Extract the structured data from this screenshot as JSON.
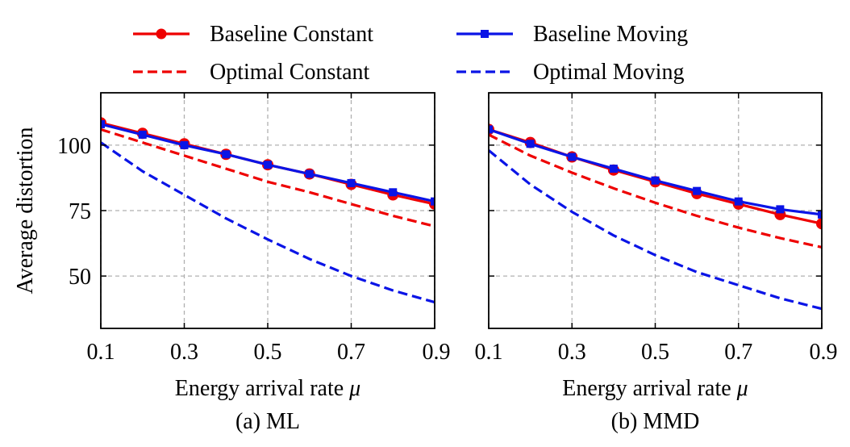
{
  "legend": {
    "entries": [
      {
        "label": "Baseline Constant",
        "color": "#ee0000",
        "style": "solid",
        "marker": "circle"
      },
      {
        "label": "Optimal Constant",
        "color": "#ee0000",
        "style": "dashed",
        "marker": "none"
      },
      {
        "label": "Baseline Moving",
        "color": "#0a14e6",
        "style": "solid",
        "marker": "square"
      },
      {
        "label": "Optimal Moving",
        "color": "#0a14e6",
        "style": "dashed",
        "marker": "none"
      }
    ]
  },
  "colors": {
    "red": "#ee0000",
    "blue": "#0a14e6",
    "grid": "#b0b0b0"
  },
  "chart_data": [
    {
      "type": "line",
      "title": "(a) ML",
      "xlabel": "Energy arrival rate",
      "xlabel_symbol": "μ",
      "ylabel": "Average distortion",
      "xlim": [
        0.1,
        0.9
      ],
      "ylim": [
        30,
        120
      ],
      "xticks": [
        "0.1",
        "0.3",
        "0.5",
        "0.7",
        "0.9"
      ],
      "yticks": [
        "50",
        "75",
        "100"
      ],
      "grid": true,
      "x": [
        0.1,
        0.2,
        0.3,
        0.4,
        0.5,
        0.6,
        0.7,
        0.8,
        0.9
      ],
      "series": [
        {
          "name": "Baseline Constant",
          "values": [
            108.5,
            104.5,
            100.5,
            96.5,
            92.5,
            89,
            85,
            81,
            77.5
          ]
        },
        {
          "name": "Optimal Constant",
          "values": [
            106,
            101,
            96,
            91,
            86,
            82,
            77.5,
            73,
            69
          ]
        },
        {
          "name": "Baseline Moving",
          "values": [
            108,
            104,
            100,
            96.5,
            92.5,
            89,
            85.5,
            82,
            78.5
          ]
        },
        {
          "name": "Optimal Moving",
          "values": [
            101,
            90,
            81,
            72,
            64,
            56.5,
            50,
            44.5,
            40
          ]
        }
      ]
    },
    {
      "type": "line",
      "title": "(b) MMD",
      "xlabel": "Energy arrival rate",
      "xlabel_symbol": "μ",
      "ylabel": "",
      "xlim": [
        0.1,
        0.9
      ],
      "ylim": [
        30,
        120
      ],
      "xticks": [
        "0.1",
        "0.3",
        "0.5",
        "0.7",
        "0.9"
      ],
      "yticks": [],
      "grid": true,
      "x": [
        0.1,
        0.2,
        0.3,
        0.4,
        0.5,
        0.6,
        0.7,
        0.8,
        0.9
      ],
      "series": [
        {
          "name": "Baseline Constant",
          "values": [
            106,
            101,
            95.5,
            90.5,
            86,
            81.5,
            77.5,
            73.5,
            70
          ]
        },
        {
          "name": "Optimal Constant",
          "values": [
            104,
            96,
            89.5,
            83.5,
            78,
            73,
            68.5,
            64.5,
            61
          ]
        },
        {
          "name": "Baseline Moving",
          "values": [
            106,
            100.5,
            95.5,
            91,
            86.5,
            82.5,
            78.5,
            75.5,
            73.5
          ]
        },
        {
          "name": "Optimal Moving",
          "values": [
            98,
            85,
            74.5,
            65.5,
            58,
            51.5,
            46.5,
            41.5,
            37.5
          ]
        }
      ]
    }
  ]
}
